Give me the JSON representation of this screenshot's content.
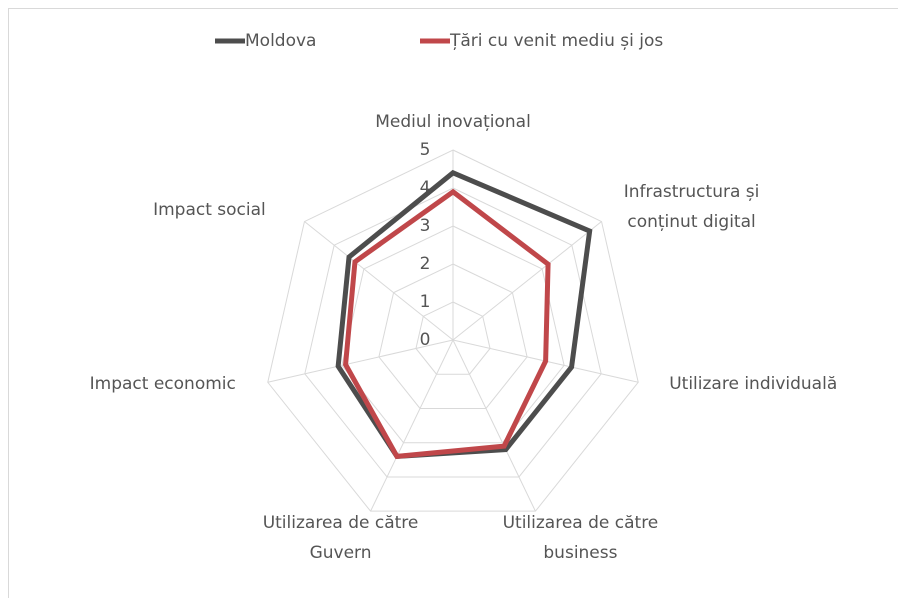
{
  "chart_data": {
    "type": "radar",
    "categories": [
      "Mediul inovațional",
      "Infrastructura și conținut digital",
      "Utilizare individuală",
      "Utilizarea de către business",
      "Utilizarea de către Guvern",
      "Impact economic",
      "Impact social"
    ],
    "series": [
      {
        "name": "Moldova",
        "color": "#4d4d4d",
        "values": [
          4.4,
          4.6,
          3.2,
          3.2,
          3.4,
          3.1,
          3.5
        ]
      },
      {
        "name": "Țări cu venit mediu și jos",
        "color": "#c0474a",
        "values": [
          3.9,
          3.2,
          2.5,
          3.1,
          3.4,
          2.9,
          3.3
        ]
      }
    ],
    "ylim": [
      0,
      5
    ],
    "yticks": [
      0,
      1,
      2,
      3,
      4,
      5
    ],
    "grid": true,
    "legend": "top"
  }
}
